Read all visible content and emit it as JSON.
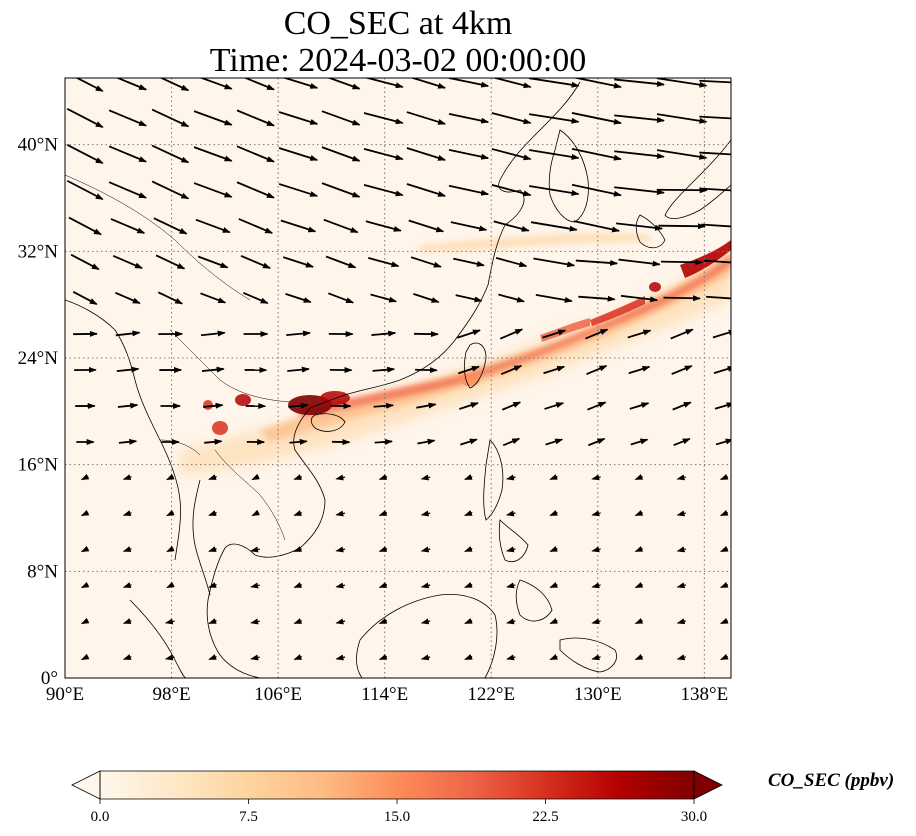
{
  "title": {
    "line1": "CO_SEC at 4km",
    "line2": "Time: 2024-03-02 00:00:00"
  },
  "map": {
    "extent": {
      "lon": [
        90,
        140
      ],
      "lat": [
        0,
        45
      ]
    },
    "x_ticks": [
      {
        "value": 90,
        "label": "90°E"
      },
      {
        "value": 98,
        "label": "98°E"
      },
      {
        "value": 106,
        "label": "106°E"
      },
      {
        "value": 114,
        "label": "114°E"
      },
      {
        "value": 122,
        "label": "122°E"
      },
      {
        "value": 130,
        "label": "130°E"
      },
      {
        "value": 138,
        "label": "138°E"
      }
    ],
    "y_ticks": [
      {
        "value": 0,
        "label": "0°"
      },
      {
        "value": 8,
        "label": "8°N"
      },
      {
        "value": 16,
        "label": "16°N"
      },
      {
        "value": 24,
        "label": "24°N"
      },
      {
        "value": 32,
        "label": "32°N"
      },
      {
        "value": 40,
        "label": "40°N"
      }
    ],
    "gridlines": true,
    "background_color": "#fff5eb",
    "coast_color": "#000000",
    "wind_arrows": "black vector arrows on a regular lon/lat grid"
  },
  "colorbar": {
    "label": "CO_SEC (ppbv)",
    "min": 0.0,
    "max": 30.0,
    "ticks": [
      "0.0",
      "7.5",
      "15.0",
      "22.5",
      "30.0"
    ],
    "tick_values": [
      0,
      7.5,
      15,
      22.5,
      30
    ],
    "colormap": "OrRd",
    "colors": [
      "#fff7ec",
      "#fee8c8",
      "#fdd49e",
      "#fdbb84",
      "#fc8d59",
      "#ef6548",
      "#d7301f",
      "#b30000",
      "#7f0000"
    ],
    "extend": "both"
  }
}
